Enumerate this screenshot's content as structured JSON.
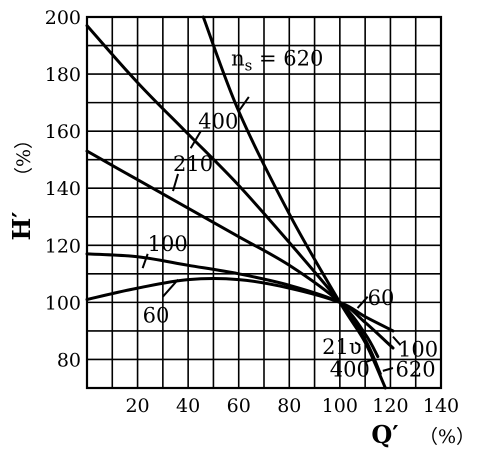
{
  "chart_data": {
    "type": "line",
    "title": "",
    "xlabel": "Q′",
    "xlabel_unit": "（%）",
    "ylabel": "H′",
    "ylabel_unit": "（%）",
    "xlim": [
      0,
      140
    ],
    "ylim": [
      70,
      200
    ],
    "xticks": [
      20,
      40,
      60,
      80,
      100,
      120,
      140
    ],
    "yticks": [
      80,
      100,
      120,
      140,
      160,
      180,
      200
    ],
    "grid": true,
    "grid_minor_x": 10,
    "grid_minor_y": 10,
    "legend": "none",
    "series": [
      {
        "name": "620",
        "label": "n",
        "label_sub": "s",
        "label_suffix": " = 620",
        "x": [
          46,
          60,
          80,
          100,
          110,
          118
        ],
        "y": [
          200,
          167,
          131,
          100,
          86,
          70
        ]
      },
      {
        "name": "400",
        "label": "400",
        "x": [
          0,
          20,
          40,
          60,
          80,
          100,
          110,
          116
        ],
        "y": [
          197,
          177,
          159,
          141,
          121,
          100,
          87,
          75
        ]
      },
      {
        "name": "210",
        "label": "210",
        "x": [
          0,
          20,
          40,
          60,
          80,
          100,
          110,
          115
        ],
        "y": [
          153,
          143,
          133,
          123,
          113,
          100,
          89,
          81
        ]
      },
      {
        "name": "100",
        "label": "100",
        "x": [
          0,
          20,
          40,
          60,
          80,
          100,
          110,
          121
        ],
        "y": [
          117,
          116,
          113,
          110,
          106,
          100,
          93,
          84
        ]
      },
      {
        "name": "60",
        "label": "60",
        "x": [
          0,
          20,
          40,
          60,
          80,
          100,
          110,
          121
        ],
        "y": [
          101,
          105,
          108,
          108,
          105,
          100,
          95,
          90
        ]
      }
    ],
    "annotations": {
      "right_60": "60",
      "right_100": "100",
      "right_210": "21υ",
      "right_400": "400",
      "right_620": "620",
      "left_60": "60"
    }
  }
}
